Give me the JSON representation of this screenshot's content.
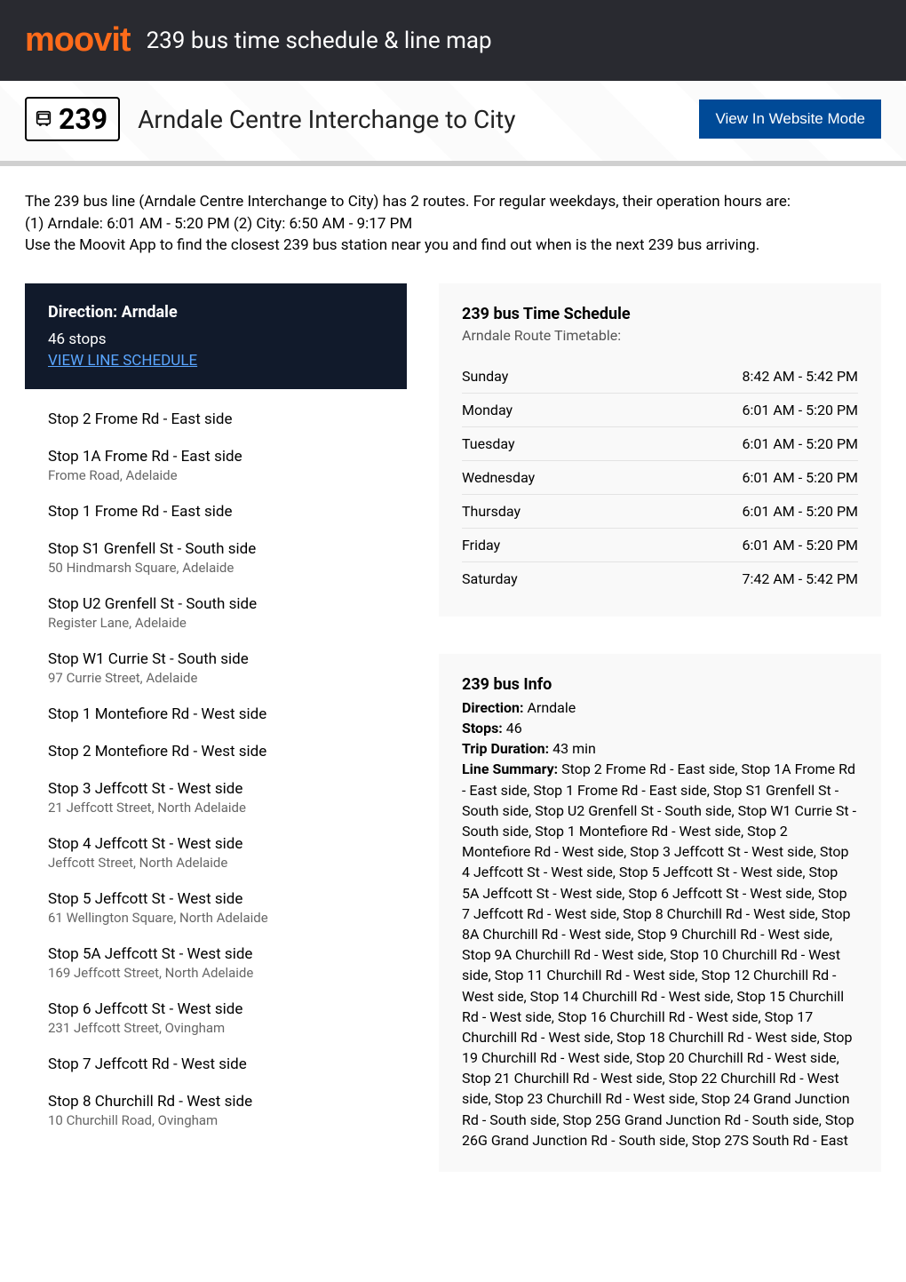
{
  "header": {
    "logo_text": "moovit",
    "title": "239 bus time schedule & line map"
  },
  "route_bar": {
    "number": "239",
    "name": "Arndale Centre Interchange to City",
    "website_btn": "View In Website Mode"
  },
  "intro_lines": [
    "The 239 bus line (Arndale Centre Interchange to City) has 2 routes. For regular weekdays, their operation hours are:",
    "(1) Arndale: 6:01 AM - 5:20 PM (2) City: 6:50 AM - 9:17 PM",
    "Use the Moovit App to find the closest 239 bus station near you and find out when is the next 239 bus arriving."
  ],
  "direction": {
    "label": "Direction: Arndale",
    "stops_count": "46 stops",
    "view_schedule": "VIEW LINE SCHEDULE"
  },
  "stops": [
    {
      "name": "Stop 2 Frome Rd - East side",
      "addr": ""
    },
    {
      "name": "Stop 1A Frome Rd - East side",
      "addr": "Frome Road, Adelaide"
    },
    {
      "name": "Stop 1 Frome Rd - East side",
      "addr": ""
    },
    {
      "name": "Stop S1 Grenfell St - South side",
      "addr": "50 Hindmarsh Square, Adelaide"
    },
    {
      "name": "Stop U2 Grenfell St - South side",
      "addr": "Register Lane, Adelaide"
    },
    {
      "name": "Stop W1 Currie St - South side",
      "addr": "97 Currie Street, Adelaide"
    },
    {
      "name": "Stop 1 Montefiore Rd - West side",
      "addr": ""
    },
    {
      "name": "Stop 2 Montefiore Rd - West side",
      "addr": ""
    },
    {
      "name": "Stop 3 Jeffcott St - West side",
      "addr": "21 Jeffcott Street, North Adelaide"
    },
    {
      "name": "Stop 4 Jeffcott St - West side",
      "addr": "Jeffcott Street, North Adelaide"
    },
    {
      "name": "Stop 5 Jeffcott St - West side",
      "addr": "61 Wellington Square, North Adelaide"
    },
    {
      "name": "Stop 5A Jeffcott St - West side",
      "addr": "169 Jeffcott Street, North Adelaide"
    },
    {
      "name": "Stop 6 Jeffcott St - West side",
      "addr": "231 Jeffcott Street, Ovingham"
    },
    {
      "name": "Stop 7 Jeffcott Rd - West side",
      "addr": ""
    },
    {
      "name": "Stop 8 Churchill Rd - West side",
      "addr": "10 Churchill Road, Ovingham"
    }
  ],
  "timetable": {
    "title": "239 bus Time Schedule",
    "subtitle": "Arndale Route Timetable:",
    "rows": [
      {
        "day": "Sunday",
        "time": "8:42 AM - 5:42 PM"
      },
      {
        "day": "Monday",
        "time": "6:01 AM - 5:20 PM"
      },
      {
        "day": "Tuesday",
        "time": "6:01 AM - 5:20 PM"
      },
      {
        "day": "Wednesday",
        "time": "6:01 AM - 5:20 PM"
      },
      {
        "day": "Thursday",
        "time": "6:01 AM - 5:20 PM"
      },
      {
        "day": "Friday",
        "time": "6:01 AM - 5:20 PM"
      },
      {
        "day": "Saturday",
        "time": "7:42 AM - 5:42 PM"
      }
    ]
  },
  "info": {
    "title": "239 bus Info",
    "direction_label": "Direction:",
    "direction_value": " Arndale",
    "stops_label": "Stops:",
    "stops_value": " 46",
    "duration_label": "Trip Duration:",
    "duration_value": " 43 min",
    "summary_label": "Line Summary:",
    "summary_value": " Stop 2 Frome Rd - East side, Stop 1A Frome Rd - East side, Stop 1 Frome Rd - East side, Stop S1 Grenfell St - South side, Stop U2 Grenfell St - South side, Stop W1 Currie St - South side, Stop 1 Montefiore Rd - West side, Stop 2 Montefiore Rd - West side, Stop 3 Jeffcott St - West side, Stop 4 Jeffcott St - West side, Stop 5 Jeffcott St - West side, Stop 5A Jeffcott St - West side, Stop 6 Jeffcott St - West side, Stop 7 Jeffcott Rd - West side, Stop 8 Churchill Rd - West side, Stop 8A Churchill Rd - West side, Stop 9 Churchill Rd - West side, Stop 9A Churchill Rd - West side, Stop 10 Churchill Rd - West side, Stop 11 Churchill Rd - West side, Stop 12 Churchill Rd - West side, Stop 14 Churchill Rd - West side, Stop 15 Churchill Rd - West side, Stop 16 Churchill Rd - West side, Stop 17 Churchill Rd - West side, Stop 18 Churchill Rd - West side, Stop 19 Churchill Rd - West side, Stop 20 Churchill Rd - West side, Stop 21 Churchill Rd - West side, Stop 22 Churchill Rd - West side, Stop 23 Churchill Rd - West side, Stop 24 Grand Junction Rd - South side, Stop 25G Grand Junction Rd - South side, Stop 26G Grand Junction Rd - South side, Stop 27S South Rd - East"
  },
  "colors": {
    "header_bg": "#292a30",
    "logo": "#ff6b1a",
    "accent_blue": "#004a97",
    "link_blue": "#5aa6ff",
    "dark_panel": "#111a2b"
  }
}
